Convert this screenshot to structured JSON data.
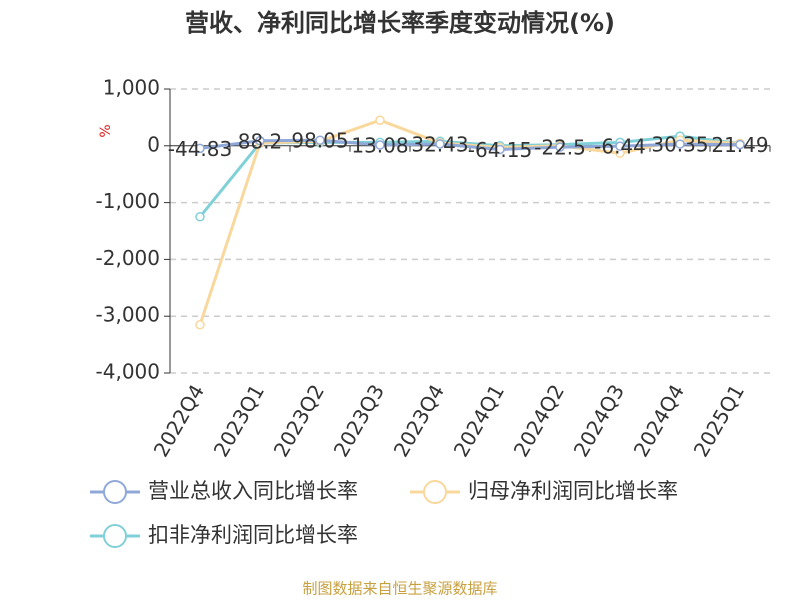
{
  "chart_data": {
    "type": "line",
    "title": "营收、净利同比增长率季度变动情况(%)",
    "y_label": "%",
    "source": "制图数据来自恒生聚源数据库",
    "categories": [
      "2022Q4",
      "2023Q1",
      "2023Q2",
      "2023Q3",
      "2023Q4",
      "2024Q1",
      "2024Q2",
      "2024Q3",
      "2024Q4",
      "2025Q1"
    ],
    "series": [
      {
        "name": "营业总收入同比增长率",
        "color": "#8fa8d8",
        "values": [
          -44.83,
          88.2,
          98.05,
          13.08,
          32.43,
          -64.15,
          -22.5,
          -6.44,
          30.35,
          21.49
        ],
        "data_labels": true
      },
      {
        "name": "归母净利润同比增长率",
        "color": "#f8d89c",
        "values": [
          -3150,
          50,
          80,
          450,
          50,
          -30,
          0,
          -130,
          100,
          40
        ]
      },
      {
        "name": "扣非净利润同比增长率",
        "color": "#80d0d8",
        "values": [
          -1250,
          50,
          60,
          60,
          80,
          0,
          20,
          60,
          170,
          40
        ]
      }
    ],
    "ylim": [
      -4000,
      1000
    ],
    "yticks": [
      {
        "value": 1000,
        "label": "1,000"
      },
      0,
      {
        "value": -1000,
        "label": "-1,000"
      },
      {
        "value": -2000,
        "label": "-2,000"
      },
      {
        "value": -3000,
        "label": "-3,000"
      },
      {
        "value": -4000,
        "label": "-4,000"
      }
    ],
    "grid": true
  }
}
